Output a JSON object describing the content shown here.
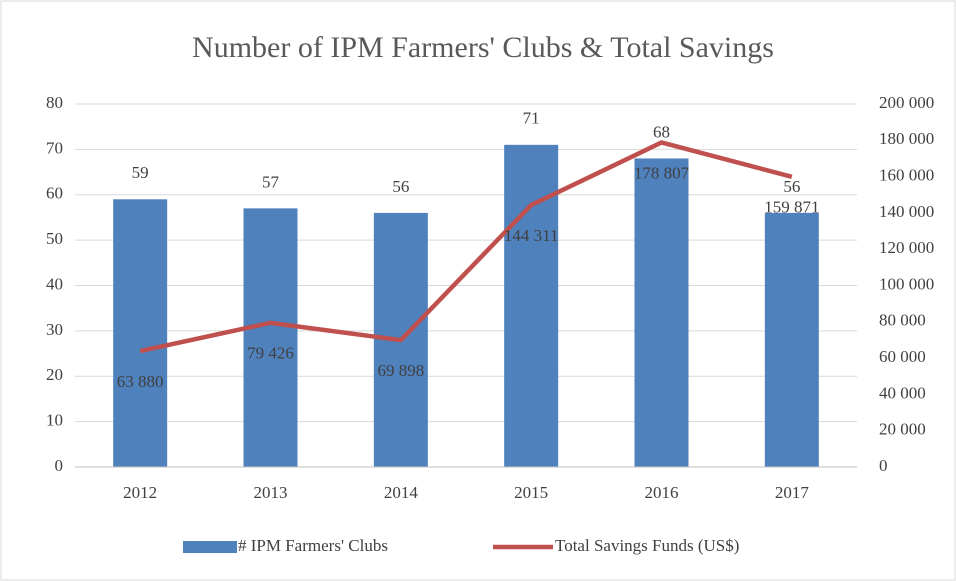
{
  "chart_data": {
    "type": "bar",
    "title": "Number of  IPM Farmers' Clubs & Total Savings",
    "categories": [
      "2012",
      "2013",
      "2014",
      "2015",
      "2016",
      "2017"
    ],
    "series": [
      {
        "name": "# IPM Farmers' Clubs",
        "type": "bar",
        "color": "#4f81bd",
        "values": [
          59,
          57,
          56,
          71,
          68,
          56
        ]
      },
      {
        "name": "Total Savings Funds (US$)",
        "type": "line",
        "axis": "y2",
        "color": "#c0504d",
        "values": [
          63880,
          79426,
          69898,
          144311,
          178807,
          159871
        ],
        "value_labels": [
          "63 880",
          "79 426",
          "69 898",
          "144 311",
          "178 807",
          "159 871"
        ]
      }
    ],
    "ylim": [
      0,
      80
    ],
    "yticks": [
      0,
      10,
      20,
      30,
      40,
      50,
      60,
      70,
      80
    ],
    "y2lim": [
      0,
      200000
    ],
    "y2ticks": [
      0,
      {
        "value": 20000,
        "label": "20 000"
      },
      {
        "value": 40000,
        "label": "40 000"
      },
      {
        "value": 60000,
        "label": "60 000"
      },
      {
        "value": 80000,
        "label": "80 000"
      },
      {
        "value": 100000,
        "label": "100 000"
      },
      {
        "value": 120000,
        "label": "120 000"
      },
      {
        "value": 140000,
        "label": "140 000"
      },
      {
        "value": 160000,
        "label": "160 000"
      },
      {
        "value": 180000,
        "label": "180 000"
      },
      {
        "value": 200000,
        "label": "200 000"
      }
    ],
    "grid": true,
    "legend": "bottom"
  }
}
